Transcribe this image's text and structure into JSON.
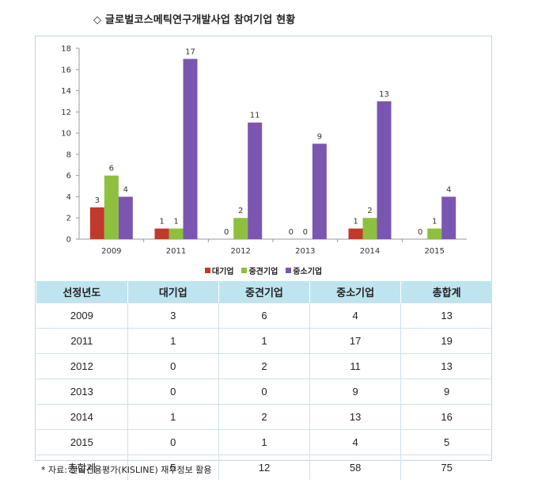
{
  "title": "◇ 글로벌코스메틱연구개발사업 참여기업 현황",
  "colors": {
    "large": "#c0392b",
    "mid": "#8fbf3f",
    "small": "#7b56b0",
    "header_bg": "#bee4f0",
    "border": "#bcd6e4"
  },
  "chart_data": {
    "type": "bar",
    "categories": [
      "2009",
      "2011",
      "2012",
      "2013",
      "2014",
      "2015"
    ],
    "series": [
      {
        "name": "대기업",
        "values": [
          3,
          1,
          0,
          0,
          1,
          0
        ]
      },
      {
        "name": "중견기업",
        "values": [
          6,
          1,
          2,
          0,
          2,
          1
        ]
      },
      {
        "name": "중소기업",
        "values": [
          4,
          17,
          11,
          9,
          13,
          4
        ]
      }
    ],
    "ylim": [
      0,
      18
    ],
    "yticks": [
      0,
      2,
      4,
      6,
      8,
      10,
      12,
      14,
      16,
      18
    ],
    "legend": "bottom",
    "grid": false
  },
  "table": {
    "headers": [
      "선정년도",
      "대기업",
      "중견기업",
      "중소기업",
      "총합계"
    ],
    "rows": [
      [
        "2009",
        "3",
        "6",
        "4",
        "13"
      ],
      [
        "2011",
        "1",
        "1",
        "17",
        "19"
      ],
      [
        "2012",
        "0",
        "2",
        "11",
        "13"
      ],
      [
        "2013",
        "0",
        "0",
        "9",
        "9"
      ],
      [
        "2014",
        "1",
        "2",
        "13",
        "16"
      ],
      [
        "2015",
        "0",
        "1",
        "4",
        "5"
      ],
      [
        "총합계",
        "5",
        "12",
        "58",
        "75"
      ]
    ]
  },
  "footnote": "* 자료: 한국신용평가(KISLINE) 재무정보 활용"
}
